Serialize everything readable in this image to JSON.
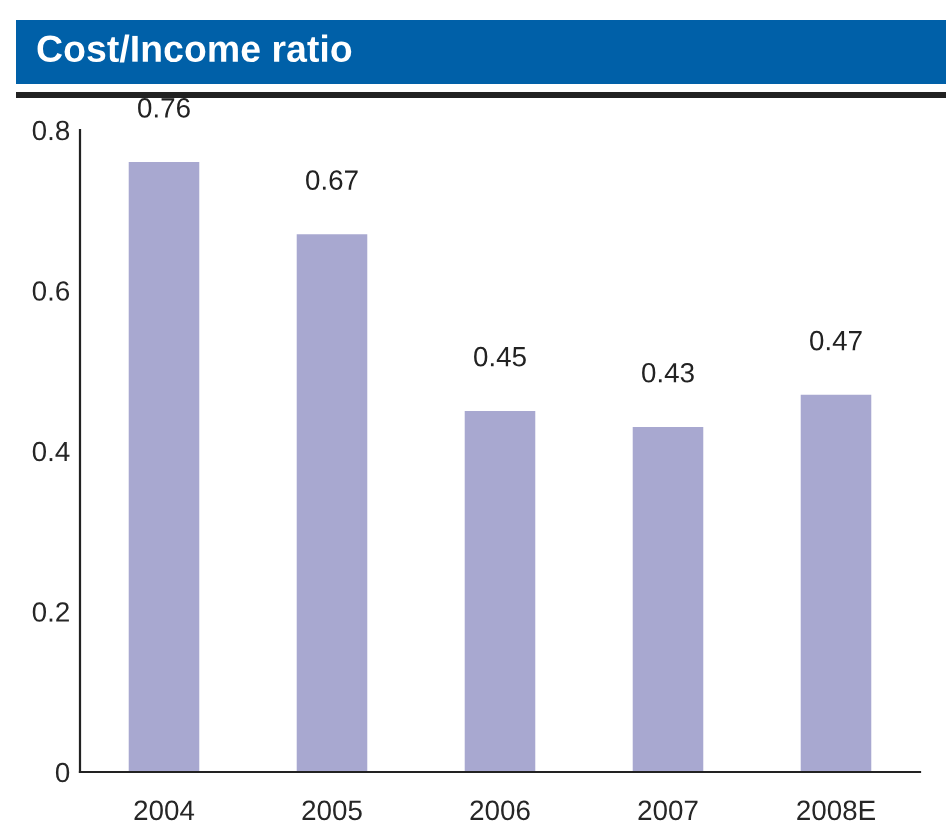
{
  "chart_data": {
    "type": "bar",
    "title": "Cost/Income ratio",
    "categories": [
      "2004",
      "2005",
      "2006",
      "2007",
      "2008E"
    ],
    "values": [
      0.76,
      0.67,
      0.45,
      0.43,
      0.47
    ],
    "color": "#a8a8d0",
    "ylim": [
      0,
      0.8
    ],
    "yticks": [
      0,
      0.2,
      0.4,
      0.6,
      0.8
    ],
    "data_labels": true,
    "grid": false,
    "legend": false
  }
}
